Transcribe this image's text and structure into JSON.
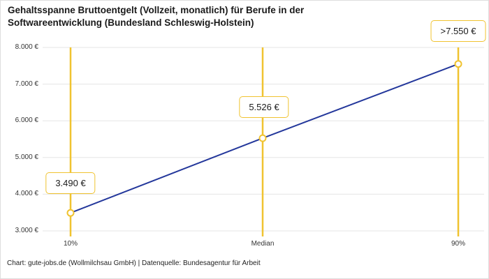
{
  "title": "Gehaltsspanne Bruttoentgelt (Vollzeit, monatlich) für Berufe in der Softwareentwicklung (Bundesland Schleswig-Holstein)",
  "footer": "Chart: gute-jobs.de (Wollmilchsau GmbH) | Datenquelle: Bundesagentur für Arbeit",
  "colors": {
    "accent_yellow": "#F0C330",
    "line_blue": "#23379B",
    "grid_gray": "#E5E5E5",
    "text": "#1A1A1A"
  },
  "chart_data": {
    "type": "line",
    "title": "Gehaltsspanne Bruttoentgelt (Vollzeit, monatlich) für Berufe in der Softwareentwicklung (Bundesland Schleswig-Holstein)",
    "categories": [
      "10%",
      "Median",
      "90%"
    ],
    "values": [
      3490,
      5526,
      7550
    ],
    "value_labels": [
      "3.490 €",
      "5.526 €",
      ">7.550 €"
    ],
    "xlabel": "",
    "ylabel": "",
    "ylim": [
      3000,
      8000
    ],
    "ytick_values": [
      8000,
      7000,
      6000,
      5000,
      4000,
      3000
    ],
    "ytick_labels": [
      "8.000 €",
      "7.000 €",
      "6.000 €",
      "5.000 €",
      "4.000 €",
      "3.000 €"
    ],
    "grid": true,
    "legend": "none",
    "marker_style": "open-circle-yellow",
    "line_color": "#23379B",
    "marker_line_color": "#F0C330"
  }
}
